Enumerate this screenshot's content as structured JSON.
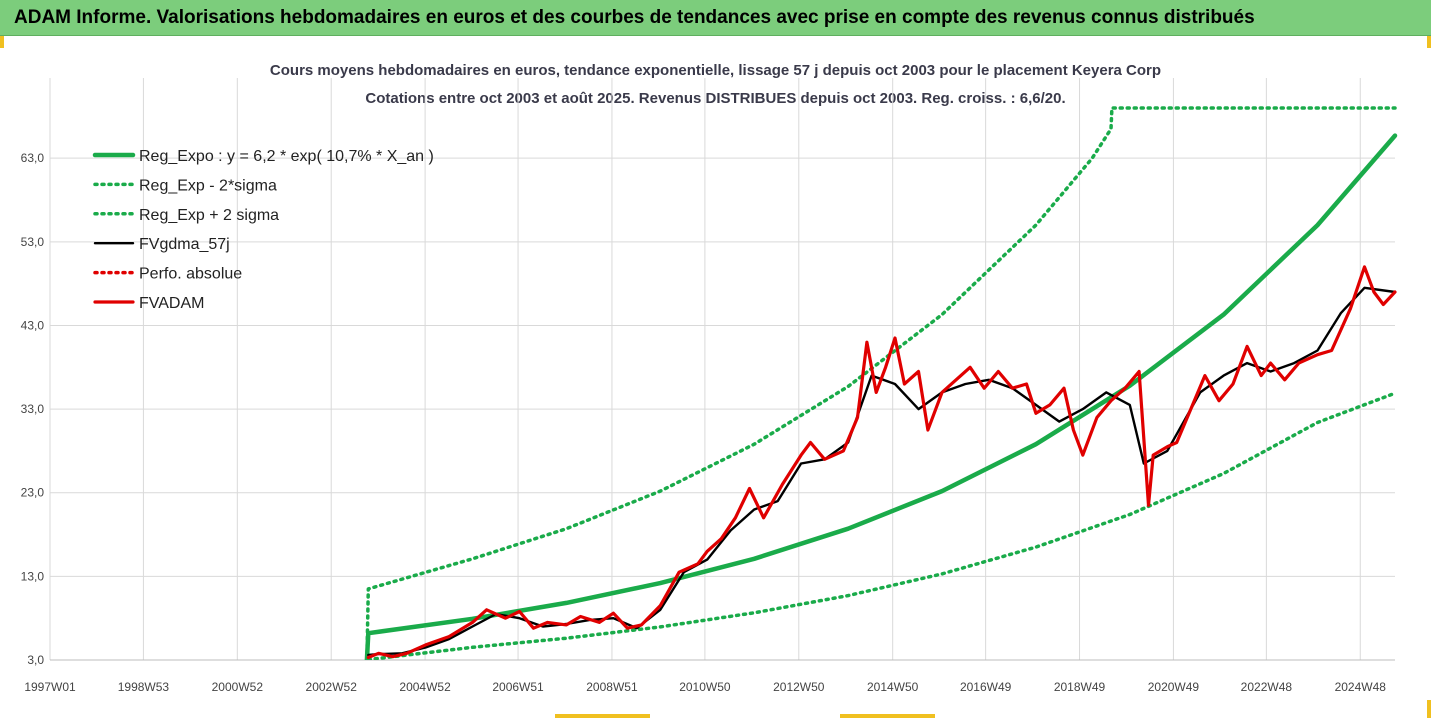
{
  "banner": {
    "title": "ADAM Informe. Valorisations hebdomadaires en euros et des courbes de tendances avec prise en compte des revenus connus distribués"
  },
  "colors": {
    "banner": "#7ccd7c",
    "trend": "#1aab4a",
    "band": "#1aab4a",
    "smoothed": "#000000",
    "absolute": "#e00000",
    "price": "#e00000"
  },
  "chart_data": {
    "type": "line",
    "title": "Cours moyens hebdomadaires en euros, tendance exponentielle, lissage 57 j depuis oct 2003 pour le placement Keyera Corp",
    "subtitle": "Cotations entre oct 2003 et août 2025. Revenus DISTRIBUES depuis oct 2003. Reg. croiss. : 6,6/20.",
    "x_range": [
      1997.0,
      2025.65
    ],
    "x_ticks": [
      {
        "x": 1997.0,
        "label": "1997W01"
      },
      {
        "x": 1998.99,
        "label": "1998W53"
      },
      {
        "x": 2000.99,
        "label": "2000W52"
      },
      {
        "x": 2002.99,
        "label": "2002W52"
      },
      {
        "x": 2004.99,
        "label": "2004W52"
      },
      {
        "x": 2006.97,
        "label": "2006W51"
      },
      {
        "x": 2008.97,
        "label": "2008W51"
      },
      {
        "x": 2010.95,
        "label": "2010W50"
      },
      {
        "x": 2012.95,
        "label": "2012W50"
      },
      {
        "x": 2014.95,
        "label": "2014W50"
      },
      {
        "x": 2016.93,
        "label": "2016W49"
      },
      {
        "x": 2018.93,
        "label": "2018W49"
      },
      {
        "x": 2020.93,
        "label": "2020W49"
      },
      {
        "x": 2022.91,
        "label": "2022W48"
      },
      {
        "x": 2024.91,
        "label": "2024W48"
      }
    ],
    "y_range": [
      3.0,
      69.0
    ],
    "y_ticks": [
      3.0,
      13.0,
      23.0,
      33.0,
      43.0,
      53.0,
      63.0
    ],
    "y_tick_labels": [
      "3,0",
      "13,0",
      "23,0",
      "33,0",
      "43,0",
      "53,0",
      "63,0"
    ],
    "grid": "vertical at x ticks, horizontal at y ticks",
    "legend_position": "top-left",
    "series": [
      {
        "name": "Reg_Expo : y = 6,2 * exp( 10,7% *  X_an )",
        "style": "solid-thick",
        "color": "#1aab4a",
        "points": [
          [
            2003.75,
            3.0
          ],
          [
            2003.78,
            6.2
          ],
          [
            2006.0,
            7.93
          ],
          [
            2008.0,
            9.83
          ],
          [
            2010.0,
            12.2
          ],
          [
            2012.0,
            15.1
          ],
          [
            2014.0,
            18.7
          ],
          [
            2016.0,
            23.2
          ],
          [
            2018.0,
            28.8
          ],
          [
            2020.0,
            35.8
          ],
          [
            2022.0,
            44.3
          ],
          [
            2024.0,
            55.0
          ],
          [
            2025.65,
            65.7
          ]
        ]
      },
      {
        "name": "Reg_Exp - 2*sigma",
        "style": "dotted",
        "color": "#1aab4a",
        "points": [
          [
            2003.78,
            3.05
          ],
          [
            2006.0,
            4.52
          ],
          [
            2008.0,
            5.61
          ],
          [
            2010.0,
            6.96
          ],
          [
            2012.0,
            8.64
          ],
          [
            2014.0,
            10.7
          ],
          [
            2016.0,
            13.3
          ],
          [
            2018.0,
            16.5
          ],
          [
            2020.0,
            20.4
          ],
          [
            2022.0,
            25.3
          ],
          [
            2024.0,
            31.4
          ],
          [
            2025.65,
            34.9
          ]
        ]
      },
      {
        "name": "Reg_Exp + 2 sigma",
        "style": "dotted",
        "color": "#1aab4a",
        "points": [
          [
            2003.75,
            3.0
          ],
          [
            2003.78,
            11.5
          ],
          [
            2006.0,
            15.1
          ],
          [
            2008.0,
            18.7
          ],
          [
            2010.0,
            23.2
          ],
          [
            2012.0,
            28.8
          ],
          [
            2014.0,
            35.7
          ],
          [
            2016.0,
            44.3
          ],
          [
            2018.0,
            55.0
          ],
          [
            2019.2,
            63.0
          ],
          [
            2019.6,
            66.5
          ],
          [
            2019.62,
            69.0
          ],
          [
            2025.65,
            69.0
          ]
        ]
      },
      {
        "name": "FVgdma_57j",
        "style": "solid",
        "color": "#000000",
        "points": [
          [
            2003.78,
            3.6
          ],
          [
            2004.0,
            3.7
          ],
          [
            2004.5,
            3.8
          ],
          [
            2005.0,
            4.5
          ],
          [
            2005.5,
            5.5
          ],
          [
            2006.0,
            7.0
          ],
          [
            2006.5,
            8.5
          ],
          [
            2007.0,
            8.0
          ],
          [
            2007.5,
            7.0
          ],
          [
            2008.0,
            7.3
          ],
          [
            2008.5,
            7.8
          ],
          [
            2009.0,
            8.0
          ],
          [
            2009.5,
            6.8
          ],
          [
            2010.0,
            9.0
          ],
          [
            2010.5,
            13.5
          ],
          [
            2011.0,
            15.0
          ],
          [
            2011.5,
            18.5
          ],
          [
            2012.0,
            21.0
          ],
          [
            2012.5,
            22.0
          ],
          [
            2013.0,
            26.5
          ],
          [
            2013.5,
            27.0
          ],
          [
            2014.0,
            29.0
          ],
          [
            2014.5,
            37.0
          ],
          [
            2015.0,
            36.0
          ],
          [
            2015.5,
            33.0
          ],
          [
            2016.0,
            35.0
          ],
          [
            2016.5,
            36.0
          ],
          [
            2017.0,
            36.5
          ],
          [
            2017.5,
            35.5
          ],
          [
            2018.0,
            33.5
          ],
          [
            2018.5,
            31.5
          ],
          [
            2019.0,
            33.0
          ],
          [
            2019.5,
            35.0
          ],
          [
            2020.0,
            33.5
          ],
          [
            2020.3,
            26.5
          ],
          [
            2020.8,
            28.0
          ],
          [
            2021.0,
            30.0
          ],
          [
            2021.5,
            35.0
          ],
          [
            2022.0,
            37.0
          ],
          [
            2022.5,
            38.5
          ],
          [
            2023.0,
            37.5
          ],
          [
            2023.5,
            38.5
          ],
          [
            2024.0,
            40.0
          ],
          [
            2024.5,
            44.5
          ],
          [
            2025.0,
            47.5
          ],
          [
            2025.65,
            47.0
          ]
        ]
      },
      {
        "name": "Perfo. absolue",
        "style": "dotted",
        "color": "#e00000",
        "points": []
      },
      {
        "name": "FVADAM",
        "style": "solid-thick",
        "color": "#e00000",
        "points": [
          [
            2003.78,
            3.3
          ],
          [
            2004.0,
            3.8
          ],
          [
            2004.3,
            3.4
          ],
          [
            2004.6,
            3.8
          ],
          [
            2005.0,
            4.8
          ],
          [
            2005.5,
            5.8
          ],
          [
            2006.0,
            7.5
          ],
          [
            2006.3,
            9.0
          ],
          [
            2006.7,
            8.0
          ],
          [
            2007.0,
            8.8
          ],
          [
            2007.3,
            6.8
          ],
          [
            2007.6,
            7.5
          ],
          [
            2008.0,
            7.2
          ],
          [
            2008.3,
            8.2
          ],
          [
            2008.7,
            7.5
          ],
          [
            2009.0,
            8.6
          ],
          [
            2009.3,
            6.8
          ],
          [
            2009.6,
            7.2
          ],
          [
            2010.0,
            9.5
          ],
          [
            2010.4,
            13.5
          ],
          [
            2010.8,
            14.5
          ],
          [
            2011.0,
            16.0
          ],
          [
            2011.3,
            17.5
          ],
          [
            2011.6,
            20.0
          ],
          [
            2011.9,
            23.5
          ],
          [
            2012.2,
            20.0
          ],
          [
            2012.6,
            24.0
          ],
          [
            2013.0,
            27.5
          ],
          [
            2013.2,
            29.0
          ],
          [
            2013.5,
            27.0
          ],
          [
            2013.9,
            28.0
          ],
          [
            2014.2,
            32.0
          ],
          [
            2014.4,
            41.0
          ],
          [
            2014.6,
            35.0
          ],
          [
            2014.8,
            38.0
          ],
          [
            2015.0,
            41.5
          ],
          [
            2015.2,
            36.0
          ],
          [
            2015.5,
            37.5
          ],
          [
            2015.7,
            30.5
          ],
          [
            2016.0,
            35.0
          ],
          [
            2016.3,
            36.5
          ],
          [
            2016.6,
            38.0
          ],
          [
            2016.9,
            35.5
          ],
          [
            2017.2,
            37.5
          ],
          [
            2017.5,
            35.5
          ],
          [
            2017.8,
            36.0
          ],
          [
            2018.0,
            32.5
          ],
          [
            2018.3,
            33.5
          ],
          [
            2018.6,
            35.5
          ],
          [
            2018.8,
            30.5
          ],
          [
            2019.0,
            27.5
          ],
          [
            2019.3,
            32.0
          ],
          [
            2019.6,
            34.0
          ],
          [
            2019.9,
            35.5
          ],
          [
            2020.2,
            37.5
          ],
          [
            2020.4,
            21.5
          ],
          [
            2020.5,
            27.5
          ],
          [
            2020.8,
            28.5
          ],
          [
            2021.0,
            29.0
          ],
          [
            2021.3,
            33.0
          ],
          [
            2021.6,
            37.0
          ],
          [
            2021.9,
            34.0
          ],
          [
            2022.2,
            36.0
          ],
          [
            2022.5,
            40.5
          ],
          [
            2022.8,
            37.0
          ],
          [
            2023.0,
            38.5
          ],
          [
            2023.3,
            36.5
          ],
          [
            2023.6,
            38.5
          ],
          [
            2024.0,
            39.5
          ],
          [
            2024.3,
            40.0
          ],
          [
            2024.7,
            45.0
          ],
          [
            2025.0,
            50.0
          ],
          [
            2025.2,
            47.0
          ],
          [
            2025.4,
            45.5
          ],
          [
            2025.65,
            47.0
          ]
        ]
      }
    ]
  }
}
